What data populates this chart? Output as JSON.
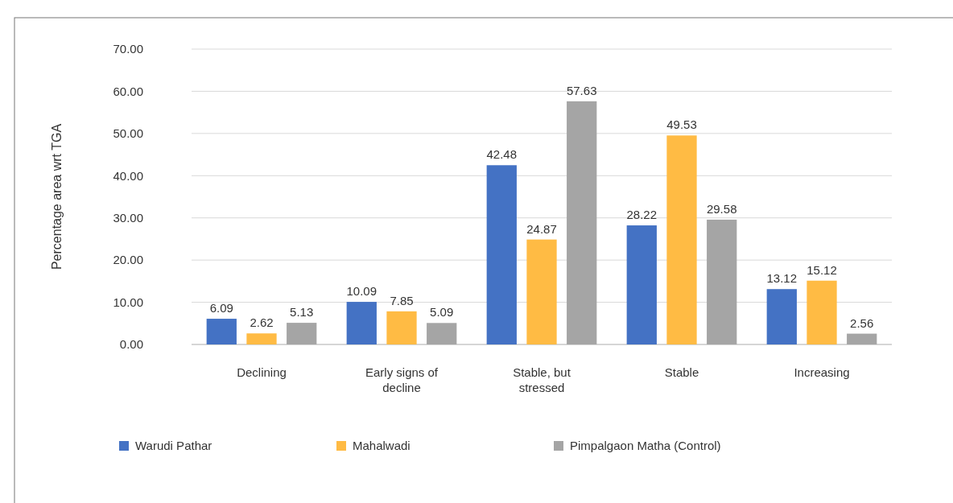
{
  "chart_data": {
    "type": "bar",
    "ylabel": "Percentage area wrt TGA",
    "categories": [
      "Declining",
      "Early signs of decline",
      "Stable, but stressed",
      "Stable",
      "Increasing"
    ],
    "series": [
      {
        "name": "Warudi Pathar",
        "color": "#4472c4",
        "values": [
          6.09,
          10.09,
          42.48,
          28.22,
          13.12
        ]
      },
      {
        "name": "Mahalwadi",
        "color": "#ffbb44",
        "values": [
          2.62,
          7.85,
          24.87,
          49.53,
          15.12
        ]
      },
      {
        "name": "Pimpalgaon Matha (Control)",
        "color": "#a5a5a5",
        "values": [
          5.13,
          5.09,
          57.63,
          29.58,
          2.56
        ]
      }
    ],
    "ylim": [
      0,
      70
    ],
    "yticks": [
      {
        "value": 0,
        "label": "0.00"
      },
      {
        "value": 10,
        "label": "10.00"
      },
      {
        "value": 20,
        "label": "20.00"
      },
      {
        "value": 30,
        "label": "30.00"
      },
      {
        "value": 40,
        "label": "40.00"
      },
      {
        "value": 50,
        "label": "50.00"
      },
      {
        "value": 60,
        "label": "60.00"
      },
      {
        "value": 70,
        "label": "70.00"
      }
    ],
    "grid": "y",
    "data_labels": true,
    "legend": "bottom"
  }
}
